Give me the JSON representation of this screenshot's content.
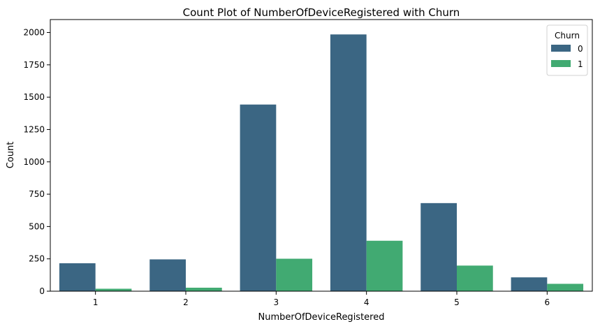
{
  "chart_data": {
    "type": "bar",
    "title": "Count Plot of NumberOfDeviceRegistered with Churn",
    "xlabel": "NumberOfDeviceRegistered",
    "ylabel": "Count",
    "categories": [
      "1",
      "2",
      "3",
      "4",
      "5",
      "6"
    ],
    "ylim": [
      0,
      2100
    ],
    "yticks": [
      0,
      250,
      500,
      750,
      1000,
      1250,
      1500,
      1750,
      2000
    ],
    "legend": {
      "title": "Churn",
      "placement": "top-right"
    },
    "series": [
      {
        "name": "0",
        "color": "#3b6683",
        "values": [
          216,
          246,
          1443,
          1985,
          681,
          107
        ]
      },
      {
        "name": "1",
        "color": "#41aa72",
        "values": [
          19,
          27,
          251,
          390,
          198,
          57
        ]
      }
    ]
  }
}
